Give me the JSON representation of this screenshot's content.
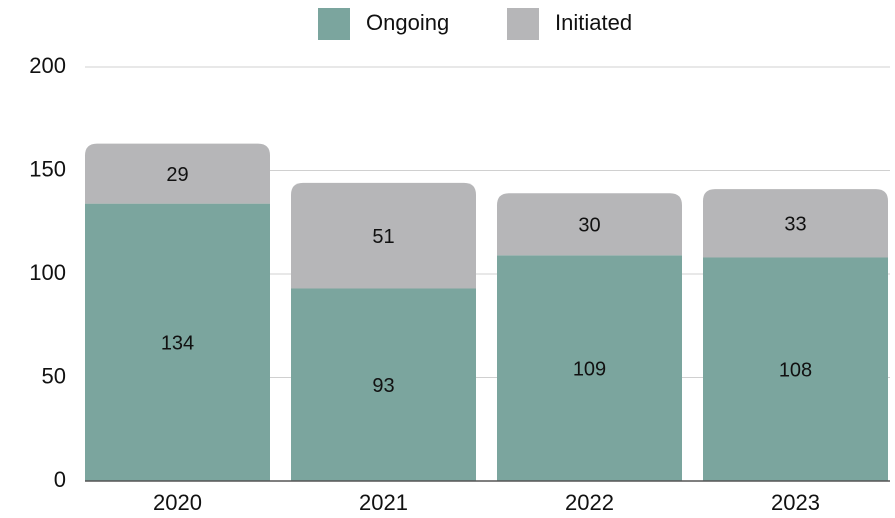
{
  "chart_data": {
    "type": "stacked_bar",
    "categories": [
      "2020",
      "2021",
      "2022",
      "2023"
    ],
    "series": [
      {
        "name": "Ongoing",
        "color": "#7ba59e",
        "values": [
          134,
          93,
          109,
          108
        ]
      },
      {
        "name": "Initiated",
        "color": "#b6b6b8",
        "values": [
          29,
          51,
          30,
          33
        ]
      }
    ],
    "ylim": [
      0,
      200
    ],
    "yticks": [
      0,
      50,
      100,
      150,
      200
    ],
    "grid": true,
    "legend": "top"
  }
}
